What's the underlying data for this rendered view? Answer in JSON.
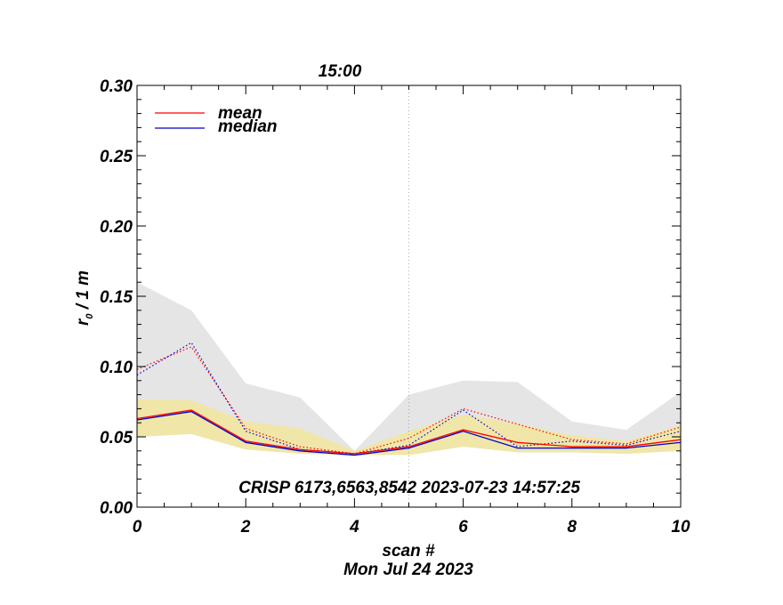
{
  "chart_data": {
    "type": "line",
    "top_label": "15:00",
    "annotation": "CRISP 6173,6563,8542 2023-07-23 14:57:25",
    "xlabel": "scan #",
    "ylabel_main": "r",
    "ylabel_sub": "0",
    "ylabel_rest": " / 1 m",
    "date_label": "Mon Jul 24 2023",
    "xlim": [
      0,
      10
    ],
    "ylim": [
      0,
      0.3
    ],
    "x_ticks": [
      "0",
      "2",
      "4",
      "6",
      "8",
      "10"
    ],
    "y_ticks": [
      "0.00",
      "0.05",
      "0.10",
      "0.15",
      "0.20",
      "0.25",
      "0.30"
    ],
    "marker_x": 5,
    "x": [
      0,
      1,
      2,
      3,
      4,
      5,
      6,
      7,
      8,
      9,
      10
    ],
    "legend": {
      "placement": "top-left",
      "entries": [
        {
          "label": "mean",
          "color": "#ff0000"
        },
        {
          "label": "median",
          "color": "#0000cc"
        }
      ]
    },
    "bands": [
      {
        "id": "full-range",
        "color": "#e5e5e5",
        "lower": [
          0.05,
          0.052,
          0.041,
          0.038,
          0.037,
          0.037,
          0.043,
          0.039,
          0.039,
          0.038,
          0.04
        ],
        "upper": [
          0.16,
          0.14,
          0.088,
          0.078,
          0.04,
          0.08,
          0.09,
          0.089,
          0.061,
          0.055,
          0.082
        ]
      },
      {
        "id": "inner-range",
        "color": "#f0e6a8",
        "lower": [
          0.05,
          0.052,
          0.041,
          0.038,
          0.037,
          0.037,
          0.043,
          0.039,
          0.039,
          0.038,
          0.04
        ],
        "upper": [
          0.077,
          0.076,
          0.061,
          0.056,
          0.04,
          0.054,
          0.066,
          0.059,
          0.051,
          0.047,
          0.058
        ]
      }
    ],
    "series": [
      {
        "id": "mean-dotted",
        "color": "#ff0000",
        "style": "dotted",
        "values": [
          0.098,
          0.114,
          0.056,
          0.043,
          0.038,
          0.049,
          0.07,
          0.059,
          0.048,
          0.045,
          0.057
        ]
      },
      {
        "id": "median-dotted",
        "color": "#0000cc",
        "style": "dotted",
        "values": [
          0.094,
          0.117,
          0.054,
          0.041,
          0.038,
          0.044,
          0.069,
          0.043,
          0.047,
          0.044,
          0.054
        ]
      },
      {
        "id": "mean-solid",
        "color": "#ff0000",
        "style": "solid",
        "values": [
          0.063,
          0.069,
          0.047,
          0.041,
          0.038,
          0.043,
          0.055,
          0.046,
          0.043,
          0.043,
          0.048
        ]
      },
      {
        "id": "median-solid",
        "color": "#0000cc",
        "style": "solid",
        "values": [
          0.062,
          0.068,
          0.046,
          0.04,
          0.037,
          0.042,
          0.054,
          0.042,
          0.042,
          0.042,
          0.046
        ]
      }
    ]
  }
}
